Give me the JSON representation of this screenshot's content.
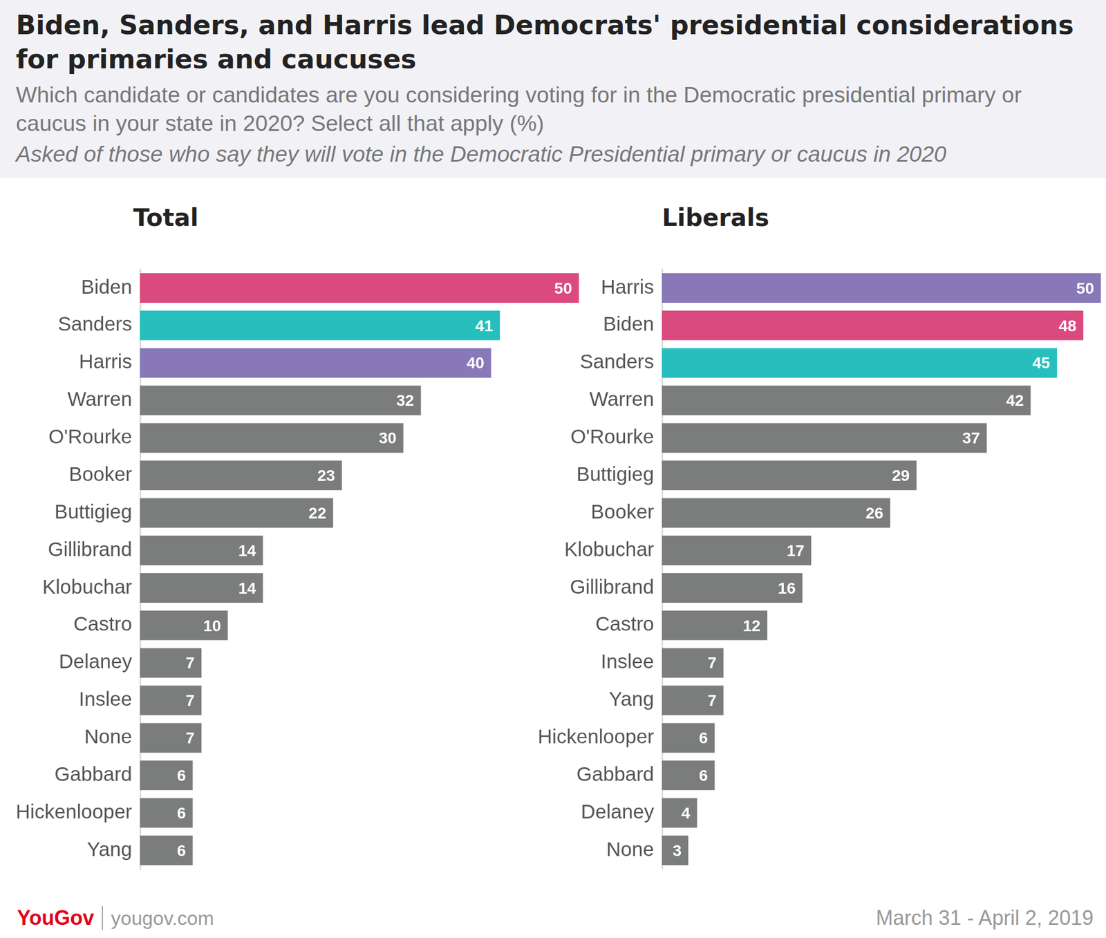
{
  "header": {
    "title": "Biden, Sanders, and Harris lead Democrats' presidential considerations for primaries and caucuses",
    "subtitle": "Which candidate or candidates are you considering voting for in the Democratic presidential primary or caucus in your state in 2020? Select all that apply (%)",
    "note": "Asked of those who say they will vote in the Democratic Presidential primary or caucus in 2020"
  },
  "footer": {
    "brand": "YouGov",
    "site": "yougov.com",
    "date": "March 31 - April 2, 2019"
  },
  "chart_data": [
    {
      "type": "bar",
      "title": "Total",
      "orientation": "horizontal",
      "data_labels": true,
      "tick_labels": "y",
      "grid": false,
      "categories": [
        "Biden",
        "Sanders",
        "Harris",
        "Warren",
        "O'Rourke",
        "Booker",
        "Buttigieg",
        "Gillibrand",
        "Klobuchar",
        "Castro",
        "Delaney",
        "Inslee",
        "None",
        "Gabbard",
        "Hickenlooper",
        "Yang"
      ],
      "values": [
        50,
        41,
        40,
        32,
        30,
        23,
        22,
        14,
        14,
        10,
        7,
        7,
        7,
        6,
        6,
        6
      ],
      "colors": [
        "#db4a7f",
        "#27bfbe",
        "#8878b8",
        "#7b7c7c",
        "#7b7c7c",
        "#7b7c7c",
        "#7b7c7c",
        "#7b7c7c",
        "#7b7c7c",
        "#7b7c7c",
        "#7b7c7c",
        "#7b7c7c",
        "#7b7c7c",
        "#7b7c7c",
        "#7b7c7c",
        "#7b7c7c"
      ],
      "xlim": [
        0,
        50
      ]
    },
    {
      "type": "bar",
      "title": "Liberals",
      "orientation": "horizontal",
      "data_labels": true,
      "tick_labels": "y",
      "grid": false,
      "categories": [
        "Harris",
        "Biden",
        "Sanders",
        "Warren",
        "O'Rourke",
        "Buttigieg",
        "Booker",
        "Klobuchar",
        "Gillibrand",
        "Castro",
        "Inslee",
        "Yang",
        "Hickenlooper",
        "Gabbard",
        "Delaney",
        "None"
      ],
      "values": [
        50,
        48,
        45,
        42,
        37,
        29,
        26,
        17,
        16,
        12,
        7,
        7,
        6,
        6,
        4,
        3
      ],
      "colors": [
        "#8878b8",
        "#db4a7f",
        "#27bfbe",
        "#7b7c7c",
        "#7b7c7c",
        "#7b7c7c",
        "#7b7c7c",
        "#7b7c7c",
        "#7b7c7c",
        "#7b7c7c",
        "#7b7c7c",
        "#7b7c7c",
        "#7b7c7c",
        "#7b7c7c",
        "#7b7c7c",
        "#7b7c7c"
      ],
      "xlim": [
        0,
        50
      ]
    }
  ]
}
